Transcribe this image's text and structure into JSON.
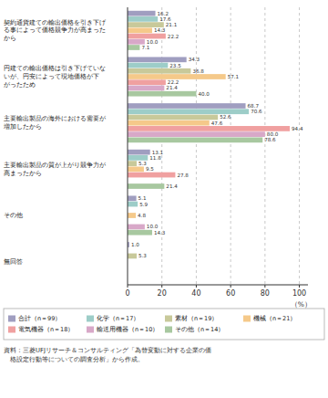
{
  "chart_data": {
    "type": "bar",
    "orientation": "horizontal",
    "categories": [
      "契約通貨建ての輸出価格を引き下げ\nる事によって価格競争力が高まった\nから",
      "円建ての輸出価格は引き下げていな\nいが、円安によって現地価格が下\nがったため",
      "主要輸出製品の海外における需要が\n増加したから",
      "主要輸出製品の質が上がり競争力が\n高まったから",
      "その他",
      "無回答"
    ],
    "series": [
      {
        "name": "合計（n＝99）",
        "color": "#a09ec0",
        "values": [
          16.2,
          34.3,
          68.7,
          13.1,
          5.1,
          1.0
        ],
        "value_labels": [
          "16.2",
          "34.3",
          "68.7",
          "13.1",
          "5.1",
          "1.0"
        ]
      },
      {
        "name": "化学（n＝17）",
        "color": "#9dcdc8",
        "values": [
          17.6,
          23.5,
          70.6,
          11.8,
          5.9,
          0.0
        ],
        "value_labels": [
          "17.6",
          "23.5",
          "70.6",
          "11.8",
          "5.9",
          null
        ]
      },
      {
        "name": "素材（n＝19）",
        "color": "#c8c99a",
        "values": [
          21.1,
          36.8,
          52.6,
          5.3,
          0.0,
          5.3
        ],
        "value_labels": [
          "21.1",
          "36.8",
          "52.6",
          "5.3",
          null,
          "5.3"
        ]
      },
      {
        "name": "機械（n＝21）",
        "color": "#f5c98a",
        "values": [
          14.3,
          57.1,
          47.6,
          9.5,
          4.8,
          0.0
        ],
        "value_labels": [
          "14.3",
          "57.1",
          "47.6",
          "9.5",
          "4.8",
          null
        ]
      },
      {
        "name": "電気機器（n＝18）",
        "color": "#f0a0a0",
        "values": [
          22.2,
          22.2,
          94.4,
          27.8,
          0.0,
          0.0
        ],
        "value_labels": [
          "22.2",
          "22.2",
          "94.4",
          "27.8",
          null,
          null
        ]
      },
      {
        "name": "輸送用機器（n＝10）",
        "color": "#d8a8c8",
        "values": [
          10.0,
          21.4,
          80.0,
          0.0,
          10.0,
          0.0
        ],
        "value_labels": [
          "10.0",
          "21.4",
          "80.0",
          null,
          "10.0",
          null
        ]
      },
      {
        "name": "その他（n＝14）",
        "color": "#a8c8a0",
        "values": [
          7.1,
          40.0,
          78.6,
          21.4,
          14.3,
          0.0
        ],
        "value_labels": [
          "7.1",
          "40.0",
          "78.6",
          "21.4",
          "14.3",
          null
        ]
      }
    ],
    "xlim": [
      0,
      105
    ],
    "xticks": [
      0,
      20,
      40,
      60,
      80,
      100
    ],
    "xlabel": "（%）",
    "grid": true,
    "legend": "bottom",
    "data_labels": true,
    "annotations": [
      "資料：三菱UFJリサーチ＆コンサルティング「為替変動に対する企業の価",
      "　格設定行動等についての調査分析」から作成。"
    ]
  }
}
